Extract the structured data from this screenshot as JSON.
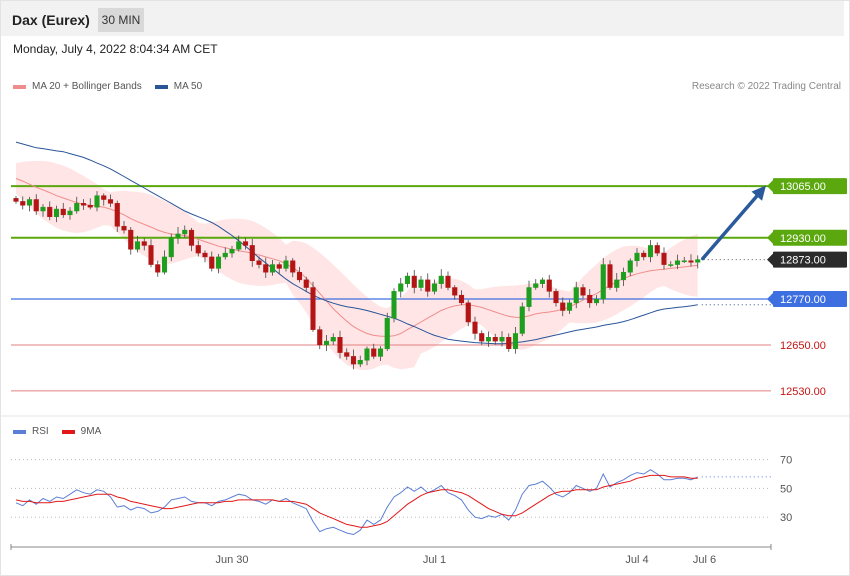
{
  "header": {
    "title": "Dax (Eurex)",
    "timeframe": "30 MIN"
  },
  "timestamp": "Monday, July 4, 2022 8:04:34 AM CET",
  "credit": "Research © 2022 Trading Central",
  "legend_main": [
    {
      "label": "MA 20 + Bollinger Bands",
      "color": "#f08c8c"
    },
    {
      "label": "MA 50",
      "color": "#2a5599"
    }
  ],
  "legend_rsi": [
    {
      "label": "RSI",
      "color": "#5b7fd6"
    },
    {
      "label": "9MA",
      "color": "#e01818"
    }
  ],
  "colors": {
    "up": "#1e9e1e",
    "down": "#b31515",
    "green_level": "#5aa80e",
    "blue_level": "#3d6fe0",
    "red_level": "#e08080",
    "band": "#ffe0e0",
    "arrow": "#2a5a9c",
    "current": "#2b2b2b"
  },
  "chart_data": [
    {
      "type": "candlestick",
      "ylim": [
        12480,
        13290
      ],
      "x_labels": [
        "Jun 30",
        "Jul 1",
        "Jul 4",
        "Jul 6"
      ],
      "closes": [
        13025,
        13015,
        13030,
        13000,
        13010,
        12985,
        13005,
        12990,
        13000,
        13020,
        13015,
        13010,
        13040,
        13030,
        13020,
        12960,
        12950,
        12900,
        12920,
        12910,
        12860,
        12840,
        12880,
        12930,
        12940,
        12950,
        12910,
        12890,
        12880,
        12850,
        12880,
        12890,
        12900,
        12920,
        12910,
        12870,
        12860,
        12840,
        12860,
        12850,
        12870,
        12840,
        12820,
        12800,
        12690,
        12650,
        12660,
        12670,
        12630,
        12620,
        12600,
        12610,
        12640,
        12620,
        12640,
        12720,
        12790,
        12810,
        12830,
        12800,
        12820,
        12790,
        12810,
        12830,
        12800,
        12780,
        12760,
        12710,
        12680,
        12660,
        12670,
        12660,
        12670,
        12640,
        12680,
        12750,
        12800,
        12810,
        12820,
        12790,
        12760,
        12740,
        12760,
        12800,
        12780,
        12760,
        12770,
        12860,
        12800,
        12820,
        12840,
        12870,
        12890,
        12880,
        12910,
        12890,
        12860,
        12860,
        12870,
        12870,
        12866,
        12873
      ],
      "series": [
        {
          "name": "MA 20 + Bollinger Bands",
          "middle": [
            13085,
            13078,
            13070,
            13062,
            13055,
            13048,
            13040,
            13034,
            13028,
            13022,
            13018,
            13015,
            13013,
            13010,
            13005,
            12998,
            12990,
            12980,
            12972,
            12965,
            12958,
            12950,
            12944,
            12940,
            12938,
            12936,
            12932,
            12926,
            12920,
            12914,
            12908,
            12904,
            12900,
            12896,
            12893,
            12890,
            12885,
            12880,
            12875,
            12870,
            12862,
            12852,
            12840,
            12825,
            12805,
            12785,
            12765,
            12745,
            12728,
            12712,
            12698,
            12688,
            12680,
            12675,
            12673,
            12672,
            12674,
            12680,
            12690,
            12700,
            12710,
            12720,
            12730,
            12740,
            12747,
            12752,
            12755,
            12755,
            12752,
            12748,
            12742,
            12736,
            12730,
            12725,
            12722,
            12722,
            12726,
            12731,
            12734,
            12736,
            12739,
            12743,
            12749,
            12758,
            12767,
            12776,
            12784,
            12795,
            12805,
            12815,
            12824,
            12830,
            12836,
            12840,
            12844,
            12846,
            12848,
            12850,
            12852,
            12854,
            12856,
            12858
          ]
        },
        {
          "name": "MA 50",
          "values": [
            13180,
            13175,
            13170,
            13165,
            13163,
            13160,
            13157,
            13155,
            13150,
            13145,
            13140,
            13133,
            13125,
            13118,
            13110,
            13100,
            13090,
            13080,
            13070,
            13060,
            13050,
            13040,
            13030,
            13020,
            13010,
            13000,
            12992,
            12985,
            12978,
            12970,
            12960,
            12948,
            12936,
            12922,
            12908,
            12893,
            12878,
            12864,
            12850,
            12836,
            12822,
            12810,
            12800,
            12790,
            12780,
            12772,
            12765,
            12759,
            12754,
            12750,
            12747,
            12744,
            12740,
            12735,
            12730,
            12725,
            12720,
            12713,
            12705,
            12698,
            12690,
            12682,
            12675,
            12670,
            12665,
            12662,
            12660,
            12658,
            12656,
            12655,
            12654,
            12653,
            12653,
            12654,
            12656,
            12658,
            12661,
            12664,
            12668,
            12672,
            12676,
            12680,
            12684,
            12688,
            12691,
            12694,
            12697,
            12701,
            12704,
            12707,
            12711,
            12716,
            12722,
            12728,
            12734,
            12740,
            12744,
            12746,
            12748,
            12750,
            12752,
            12755
          ]
        }
      ],
      "levels": [
        {
          "value": 13065,
          "label": "13065.00",
          "style": "green"
        },
        {
          "value": 12930,
          "label": "12930.00",
          "style": "green"
        },
        {
          "value": 12873,
          "label": "12873.00",
          "style": "current"
        },
        {
          "value": 12770,
          "label": "12770.00",
          "style": "blue"
        },
        {
          "value": 12650,
          "label": "12650.00",
          "style": "red"
        },
        {
          "value": 12530,
          "label": "12530.00",
          "style": "red"
        }
      ],
      "arrow": {
        "from": 12873,
        "to": 13065
      }
    },
    {
      "type": "line",
      "ylim": [
        10,
        85
      ],
      "y_ticks": [
        "70",
        "50",
        "30"
      ],
      "series": [
        {
          "name": "RSI",
          "values": [
            40,
            38,
            42,
            39,
            43,
            41,
            44,
            43,
            46,
            49,
            47,
            46,
            49,
            48,
            44,
            37,
            38,
            35,
            37,
            36,
            33,
            34,
            37,
            42,
            43,
            44,
            41,
            40,
            40,
            38,
            41,
            42,
            44,
            46,
            45,
            42,
            41,
            39,
            42,
            41,
            43,
            40,
            38,
            36,
            27,
            20,
            22,
            23,
            21,
            19,
            18,
            21,
            28,
            25,
            28,
            37,
            44,
            47,
            51,
            48,
            51,
            47,
            49,
            52,
            47,
            45,
            42,
            35,
            30,
            29,
            31,
            30,
            32,
            28,
            35,
            46,
            52,
            53,
            55,
            51,
            46,
            44,
            47,
            52,
            50,
            48,
            50,
            60,
            51,
            54,
            56,
            59,
            61,
            60,
            63,
            60,
            56,
            56,
            57,
            57,
            56,
            58
          ]
        },
        {
          "name": "9MA",
          "values": [
            42,
            41,
            41,
            40,
            40,
            40,
            41,
            41,
            42,
            43,
            44,
            45,
            46,
            46,
            46,
            44,
            43,
            41,
            40,
            39,
            38,
            37,
            36,
            36,
            37,
            38,
            39,
            40,
            40,
            40,
            40,
            41,
            41,
            42,
            42,
            42,
            42,
            42,
            42,
            41,
            41,
            41,
            40,
            39,
            36,
            33,
            31,
            29,
            27,
            25,
            24,
            23,
            23,
            24,
            25,
            27,
            31,
            35,
            39,
            42,
            45,
            47,
            48,
            49,
            49,
            48,
            47,
            45,
            42,
            39,
            36,
            34,
            32,
            31,
            31,
            33,
            36,
            39,
            42,
            45,
            47,
            48,
            48,
            49,
            49,
            49,
            49,
            51,
            52,
            53,
            54,
            55,
            57,
            58,
            59,
            59,
            59,
            58,
            58,
            58,
            57,
            57
          ]
        }
      ],
      "last_value": 58
    }
  ]
}
